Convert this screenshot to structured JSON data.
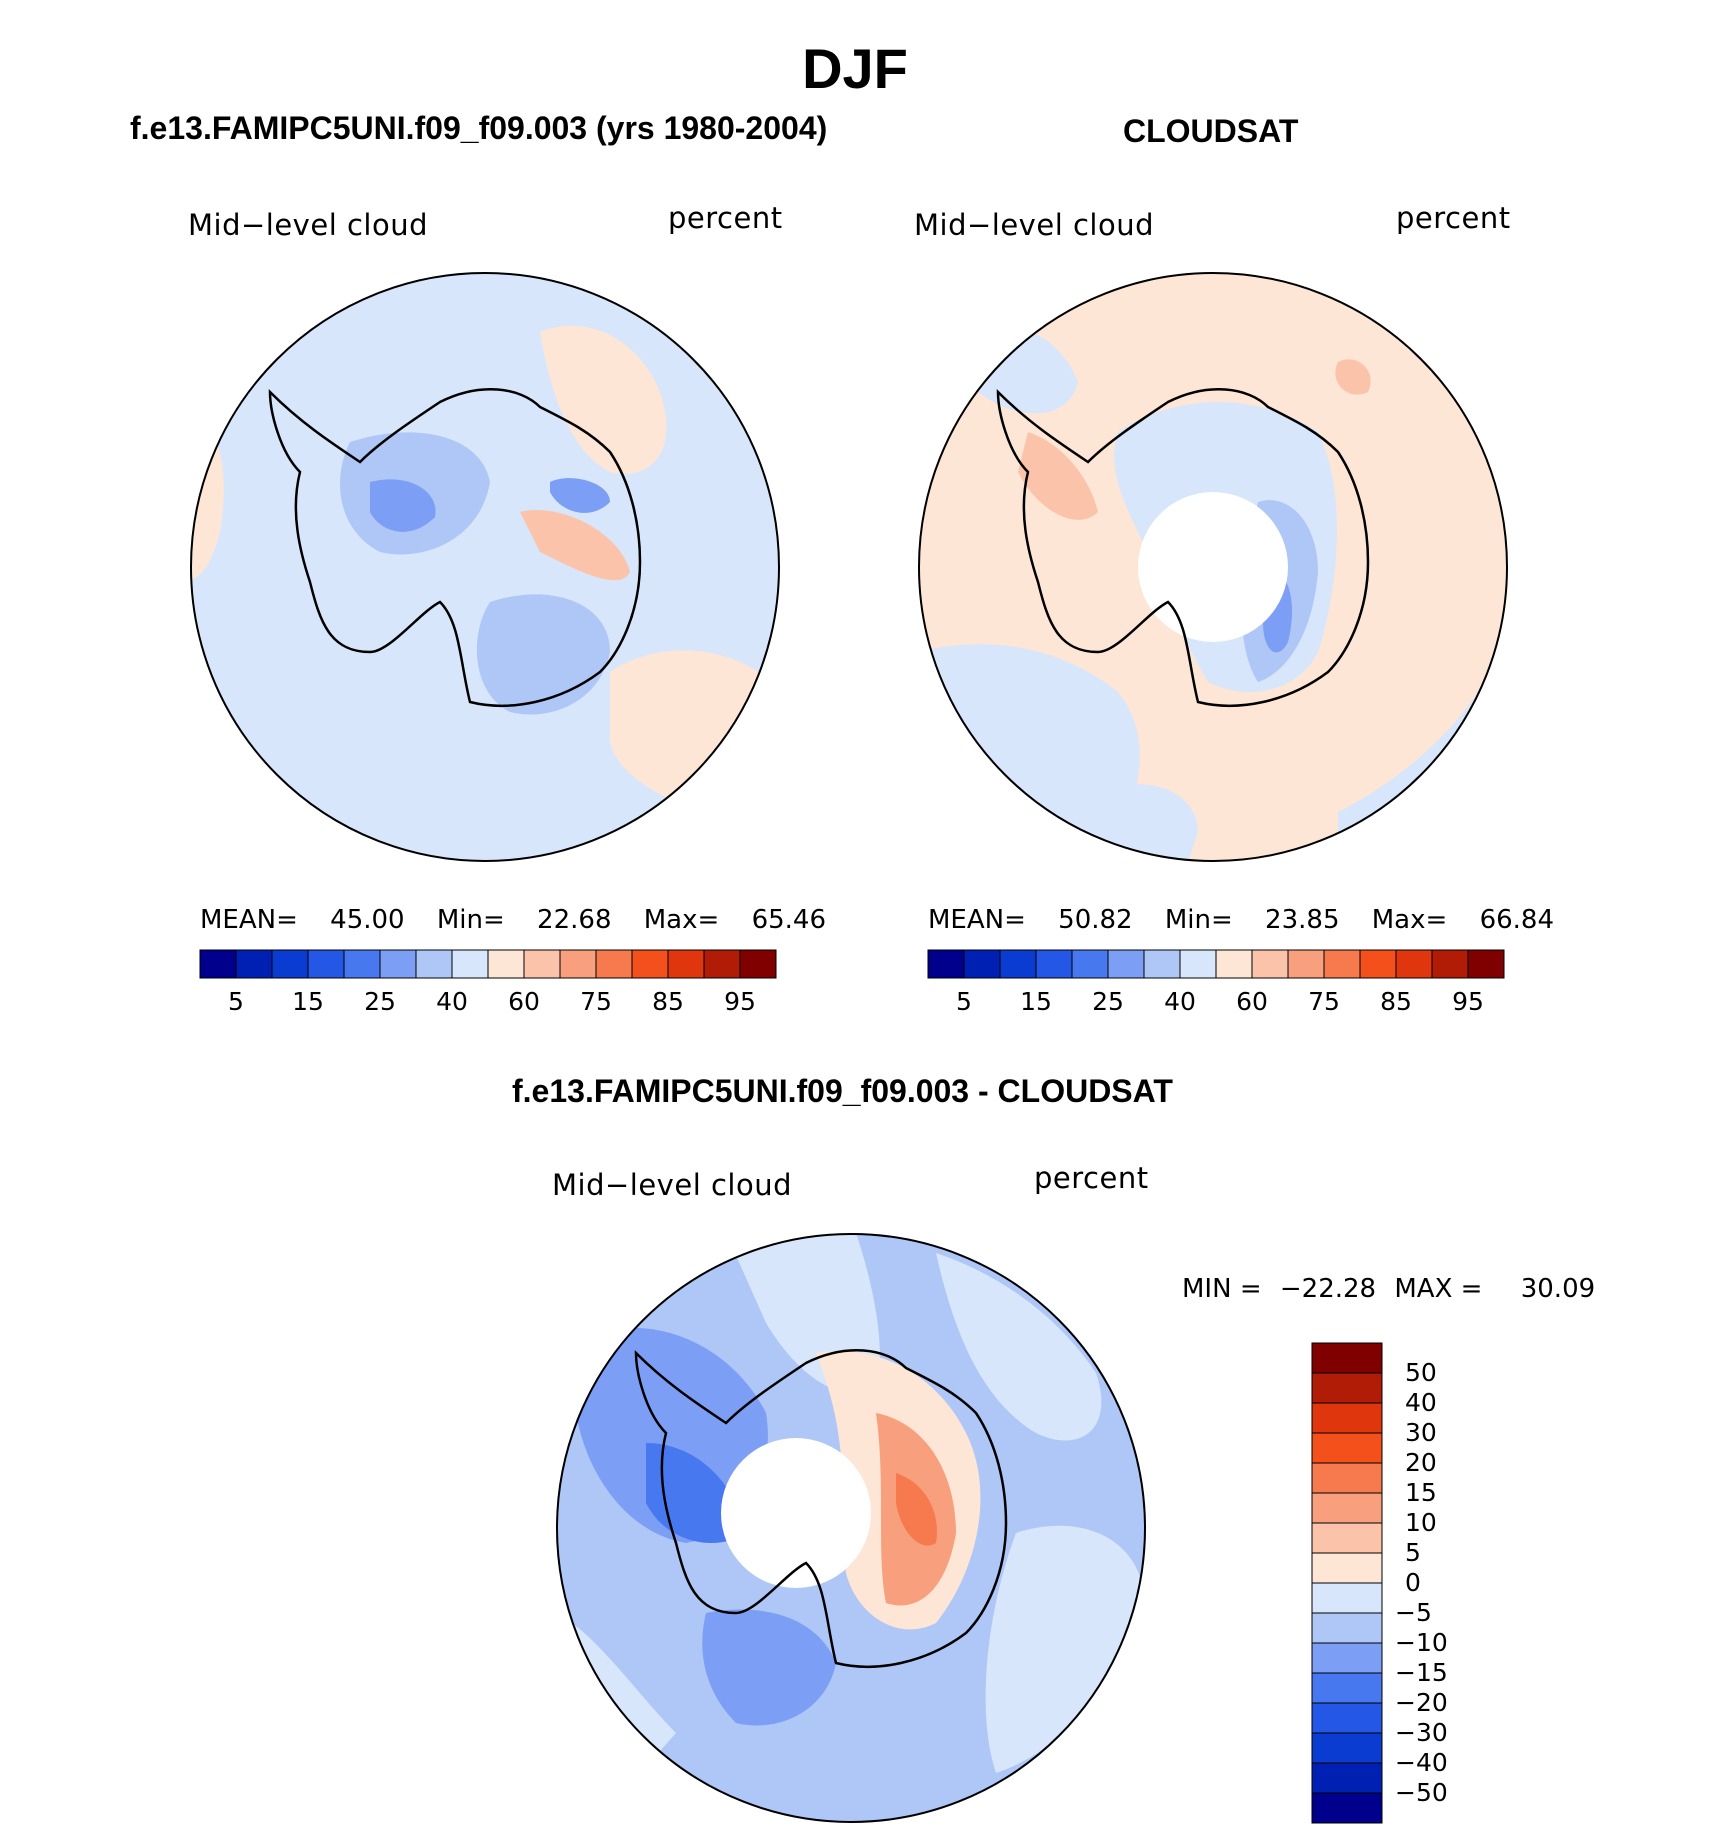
{
  "chart_data": [
    {
      "type": "heatmap",
      "projection": "south-polar-stereographic",
      "title": "f.e13.FAMIPC5UNI.f09_f09.003 (yrs 1980-2004)",
      "variable_label": "Mid−level cloud",
      "units_label": "percent",
      "stats": {
        "mean_label": "MEAN=",
        "mean": "45.00",
        "min_label": "Min=",
        "min": "22.68",
        "max_label": "Max=",
        "max": "65.46"
      },
      "colorbar": {
        "orientation": "horizontal",
        "tick_labels": [
          "5",
          "15",
          "25",
          "40",
          "60",
          "75",
          "85",
          "95"
        ],
        "colors": [
          "#00008c",
          "#0020b4",
          "#0b3cd2",
          "#2457e6",
          "#4878f0",
          "#7c9ef4",
          "#afc7f7",
          "#d7e6fb",
          "#fde6d6",
          "#fbc4aa",
          "#f8a07e",
          "#f67a4e",
          "#f4501c",
          "#e0360e",
          "#b01c06",
          "#800000"
        ]
      }
    },
    {
      "type": "heatmap",
      "projection": "south-polar-stereographic",
      "title": "CLOUDSAT",
      "variable_label": "Mid−level cloud",
      "units_label": "percent",
      "stats": {
        "mean_label": "MEAN=",
        "mean": "50.82",
        "min_label": "Min=",
        "min": "23.85",
        "max_label": "Max=",
        "max": "66.84"
      },
      "colorbar": {
        "orientation": "horizontal",
        "tick_labels": [
          "5",
          "15",
          "25",
          "40",
          "60",
          "75",
          "85",
          "95"
        ],
        "colors": [
          "#00008c",
          "#0020b4",
          "#0b3cd2",
          "#2457e6",
          "#4878f0",
          "#7c9ef4",
          "#afc7f7",
          "#d7e6fb",
          "#fde6d6",
          "#fbc4aa",
          "#f8a07e",
          "#f67a4e",
          "#f4501c",
          "#e0360e",
          "#b01c06",
          "#800000"
        ]
      }
    },
    {
      "type": "heatmap",
      "projection": "south-polar-stereographic",
      "title": "f.e13.FAMIPC5UNI.f09_f09.003 - CLOUDSAT",
      "variable_label": "Mid−level cloud",
      "units_label": "percent",
      "stats": {
        "min_label": "MIN =",
        "min": "−22.28",
        "max_label": "MAX =",
        "max": "30.09"
      },
      "colorbar": {
        "orientation": "vertical",
        "tick_labels": [
          "50",
          "40",
          "30",
          "20",
          "15",
          "10",
          "5",
          "0",
          "−5",
          "−10",
          "−15",
          "−20",
          "−30",
          "−40",
          "−50"
        ],
        "colors": [
          "#800000",
          "#b01c06",
          "#e0360e",
          "#f4501c",
          "#f67a4e",
          "#f8a07e",
          "#fbc4aa",
          "#fde6d6",
          "#d7e6fb",
          "#afc7f7",
          "#7c9ef4",
          "#4878f0",
          "#2457e6",
          "#0b3cd2",
          "#0020b4",
          "#00008c"
        ]
      }
    }
  ],
  "page": {
    "main_title": "DJF"
  }
}
